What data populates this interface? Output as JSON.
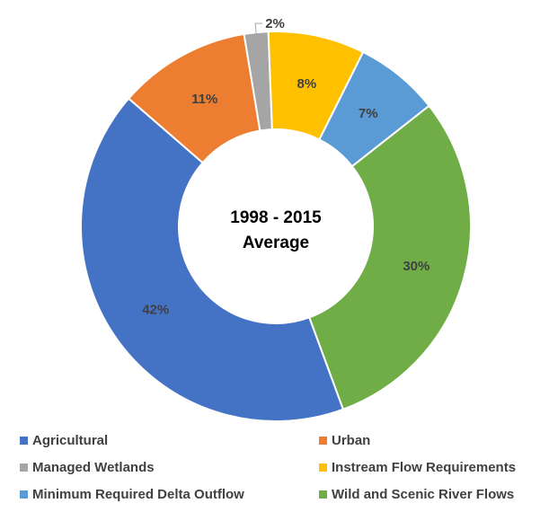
{
  "chart_data": {
    "type": "pie",
    "variant": "donut",
    "center_title": [
      "1998 - 2015",
      "Average"
    ],
    "slices": [
      {
        "name": "Agricultural",
        "value": 42,
        "label": "42%",
        "color": "#4472C4"
      },
      {
        "name": "Urban",
        "value": 11,
        "label": "11%",
        "color": "#ED7D31"
      },
      {
        "name": "Managed Wetlands",
        "value": 2,
        "label": "2%",
        "color": "#A5A5A5"
      },
      {
        "name": "Instream Flow Requirements",
        "value": 8,
        "label": "8%",
        "color": "#FFC000"
      },
      {
        "name": "Minimum Required Delta Outflow",
        "value": 7,
        "label": "7%",
        "color": "#5B9BD5"
      },
      {
        "name": "Wild and Scenic River Flows",
        "value": 30,
        "label": "30%",
        "color": "#70AD47"
      }
    ],
    "legend": {
      "placement": "bottom",
      "entries": [
        "Agricultural",
        "Urban",
        "Managed Wetlands",
        "Instream Flow Requirements",
        "Minimum Required Delta Outflow",
        "Wild and Scenic River Flows"
      ]
    }
  }
}
